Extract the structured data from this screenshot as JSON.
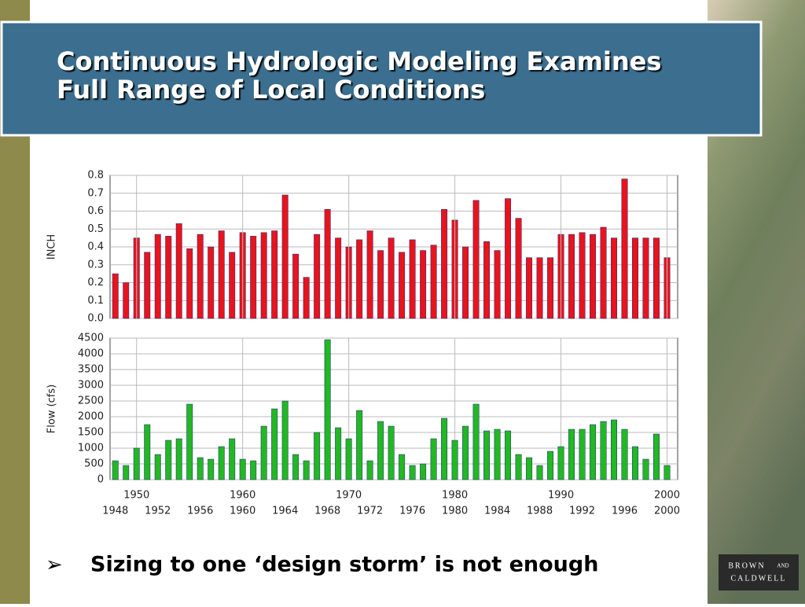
{
  "slide": {
    "title_lines": [
      "Continuous Hydrologic Modeling Examines",
      "Full Range of Local Conditions"
    ],
    "bullet_symbol": "➢",
    "bullet": "Sizing to one ‘design storm’ is not enough",
    "logo": [
      "BROWN",
      "AND",
      "CALDWELL"
    ]
  },
  "chart_data": [
    {
      "type": "bar",
      "ylabel": "INCH",
      "color": "#e8141c",
      "grid": true,
      "xlim": [
        1947.5,
        2001
      ],
      "ylim": [
        0,
        0.8
      ],
      "yticks": [
        {
          "value": 0,
          "label": "0.0"
        },
        0.1,
        0.2,
        0.3,
        0.4,
        0.5,
        0.6,
        0.7,
        0.8
      ],
      "x": [
        1948,
        1949,
        1950,
        1951,
        1952,
        1953,
        1954,
        1955,
        1956,
        1957,
        1958,
        1959,
        1960,
        1961,
        1962,
        1963,
        1964,
        1965,
        1966,
        1967,
        1968,
        1969,
        1970,
        1971,
        1972,
        1973,
        1974,
        1975,
        1976,
        1977,
        1978,
        1979,
        1980,
        1981,
        1982,
        1983,
        1984,
        1985,
        1986,
        1987,
        1988,
        1989,
        1990,
        1991,
        1992,
        1993,
        1994,
        1995,
        1996,
        1997,
        1998,
        1999,
        2000
      ],
      "values": [
        0.25,
        0.2,
        0.45,
        0.37,
        0.47,
        0.46,
        0.53,
        0.39,
        0.47,
        0.4,
        0.49,
        0.37,
        0.48,
        0.46,
        0.48,
        0.49,
        0.69,
        0.36,
        0.23,
        0.47,
        0.61,
        0.45,
        0.4,
        0.44,
        0.49,
        0.38,
        0.45,
        0.37,
        0.44,
        0.38,
        0.41,
        0.61,
        0.55,
        0.4,
        0.66,
        0.43,
        0.38,
        0.67,
        0.56,
        0.34,
        0.34,
        0.34,
        0.47,
        0.47,
        0.48,
        0.47,
        0.51,
        0.45,
        0.78,
        0.45,
        0.45,
        0.45,
        0.34
      ]
    },
    {
      "type": "bar",
      "ylabel": "Flow (cfs)",
      "color": "#22b822",
      "grid": true,
      "xlim": [
        1947.5,
        2001
      ],
      "ylim": [
        0,
        4500
      ],
      "yticks": [
        0,
        500,
        1000,
        1500,
        2000,
        2500,
        3000,
        3500,
        4000,
        4500
      ],
      "xticks": [
        1950,
        1960,
        1970,
        1980,
        1990,
        2000
      ],
      "xticks2": [
        1948,
        1952,
        1956,
        1960,
        1964,
        1968,
        1972,
        1976,
        1980,
        1984,
        1988,
        1992,
        1996,
        2000
      ],
      "x": [
        1948,
        1949,
        1950,
        1951,
        1952,
        1953,
        1954,
        1955,
        1956,
        1957,
        1958,
        1959,
        1960,
        1961,
        1962,
        1963,
        1964,
        1965,
        1966,
        1967,
        1968,
        1969,
        1970,
        1971,
        1972,
        1973,
        1974,
        1975,
        1976,
        1977,
        1978,
        1979,
        1980,
        1981,
        1982,
        1983,
        1984,
        1985,
        1986,
        1987,
        1988,
        1989,
        1990,
        1991,
        1992,
        1993,
        1994,
        1995,
        1996,
        1997,
        1998,
        1999,
        2000
      ],
      "values": [
        600,
        450,
        1000,
        1750,
        800,
        1250,
        1300,
        2400,
        700,
        650,
        1050,
        1300,
        650,
        600,
        1700,
        2250,
        2500,
        800,
        600,
        1500,
        4450,
        1650,
        1300,
        2200,
        600,
        1850,
        1700,
        800,
        450,
        500,
        1300,
        1950,
        1250,
        1700,
        2400,
        1550,
        1600,
        1550,
        800,
        700,
        450,
        900,
        1050,
        1600,
        1600,
        1750,
        1850,
        1900,
        1600,
        1050,
        650,
        1450,
        450
      ]
    }
  ]
}
